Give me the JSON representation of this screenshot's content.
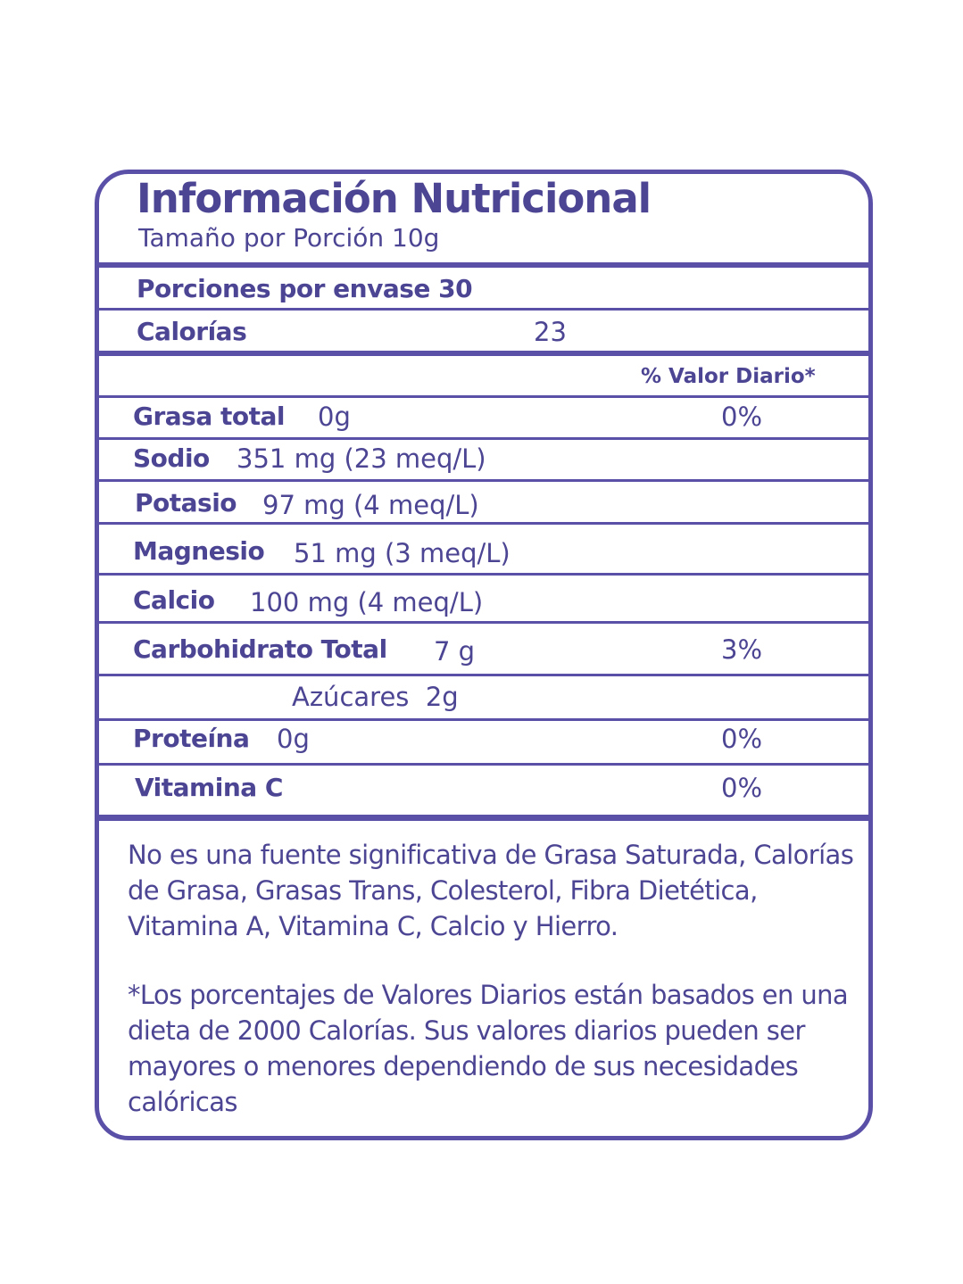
{
  "title": "Información Nutricional",
  "serving_size": "Tamaño por Porción 10g",
  "servings": "Porciones por envase 30",
  "calories": {
    "label": "Calorías",
    "value": "23"
  },
  "dv_header": "% Valor Diario*",
  "rows": [
    {
      "label": "Grasa total",
      "value": "0g",
      "pct": "0%"
    },
    {
      "label": "Sodio",
      "value": "351 mg (23 meq/L)",
      "pct": ""
    },
    {
      "label": "Potasio",
      "value": "97 mg (4 meq/L)",
      "pct": ""
    },
    {
      "label": "Magnesio",
      "value": "51 mg (3 meq/L)",
      "pct": ""
    },
    {
      "label": "Calcio",
      "value": "100 mg (4 meq/L)",
      "pct": ""
    },
    {
      "label": "Carbohidrato Total",
      "value": "7 g",
      "pct": "3%"
    },
    {
      "label": "",
      "value": "Azúcares  2g",
      "pct": ""
    },
    {
      "label": "Proteína",
      "value": "0g",
      "pct": "0%"
    },
    {
      "label": "Vitamina C",
      "value": "",
      "pct": "0%"
    }
  ],
  "footnote1": "No es una fuente significativa de Grasa Saturada, Calorías de Grasa, Grasas Trans, Colesterol, Fibra Dietética, Vitamina A, Vitamina C, Calcio y Hierro.",
  "footnote2": "*Los porcentajes de Valores Diarios están basados en una dieta de 2000 Calorías. Sus valores diarios pueden ser mayores o menores dependiendo de sus necesidades calóricas",
  "colors": {
    "border": "#5a50a8",
    "text": "#4c4593"
  }
}
